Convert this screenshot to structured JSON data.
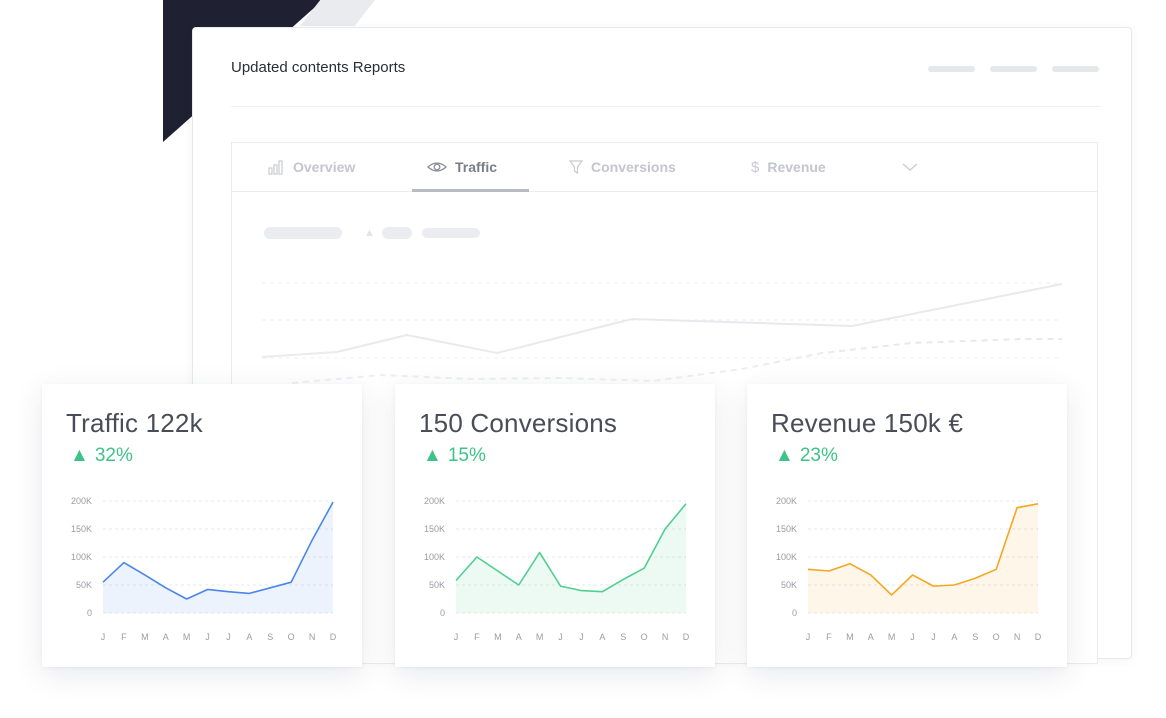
{
  "report": {
    "title": "Updated contents Reports",
    "tabs": [
      {
        "label": "Overview",
        "icon": "bar-chart-icon",
        "active": false
      },
      {
        "label": "Traffic",
        "icon": "eye-icon",
        "active": true
      },
      {
        "label": "Conversions",
        "icon": "funnel-icon",
        "active": false
      },
      {
        "label": "Revenue",
        "icon": "dollar-icon",
        "active": false
      }
    ],
    "more_icon": "chevron-down-icon"
  },
  "colors": {
    "blue": "#4a86e8",
    "green": "#4fcf90",
    "orange": "#f5a623",
    "positive": "#3ec28a"
  },
  "cards": [
    {
      "title": "Traffic 122k",
      "change": "32%",
      "arrow": "▲"
    },
    {
      "title": "150 Conversions",
      "change": "15%",
      "arrow": "▲"
    },
    {
      "title": "Revenue 150k €",
      "change": "23%",
      "arrow": "▲"
    }
  ],
  "chart_data": [
    {
      "type": "area",
      "categories": [
        "J",
        "F",
        "M",
        "A",
        "M",
        "J",
        "J",
        "A",
        "S",
        "O",
        "N",
        "D"
      ],
      "yticks": [
        "200K",
        "150K",
        "100K",
        "50K",
        "0"
      ],
      "ylim": [
        0,
        200000
      ],
      "series": [
        {
          "values": [
            55000,
            90000,
            68000,
            45000,
            25000,
            42000,
            38000,
            35000,
            45000,
            55000,
            130000,
            198000
          ]
        }
      ],
      "grid": true
    },
    {
      "type": "area",
      "categories": [
        "J",
        "F",
        "M",
        "A",
        "M",
        "J",
        "J",
        "A",
        "S",
        "O",
        "N",
        "D"
      ],
      "yticks": [
        "200K",
        "150K",
        "100K",
        "50K",
        "0"
      ],
      "ylim": [
        0,
        200000
      ],
      "series": [
        {
          "values": [
            58000,
            100000,
            75000,
            50000,
            108000,
            48000,
            40000,
            38000,
            60000,
            80000,
            150000,
            195000
          ]
        }
      ],
      "grid": true
    },
    {
      "type": "area",
      "categories": [
        "J",
        "F",
        "M",
        "A",
        "M",
        "J",
        "J",
        "A",
        "S",
        "O",
        "N",
        "D"
      ],
      "yticks": [
        "200K",
        "150K",
        "100K",
        "50K",
        "0"
      ],
      "ylim": [
        0,
        200000
      ],
      "series": [
        {
          "values": [
            78000,
            75000,
            88000,
            68000,
            32000,
            68000,
            48000,
            50000,
            62000,
            78000,
            188000,
            195000
          ]
        }
      ],
      "grid": true
    }
  ]
}
